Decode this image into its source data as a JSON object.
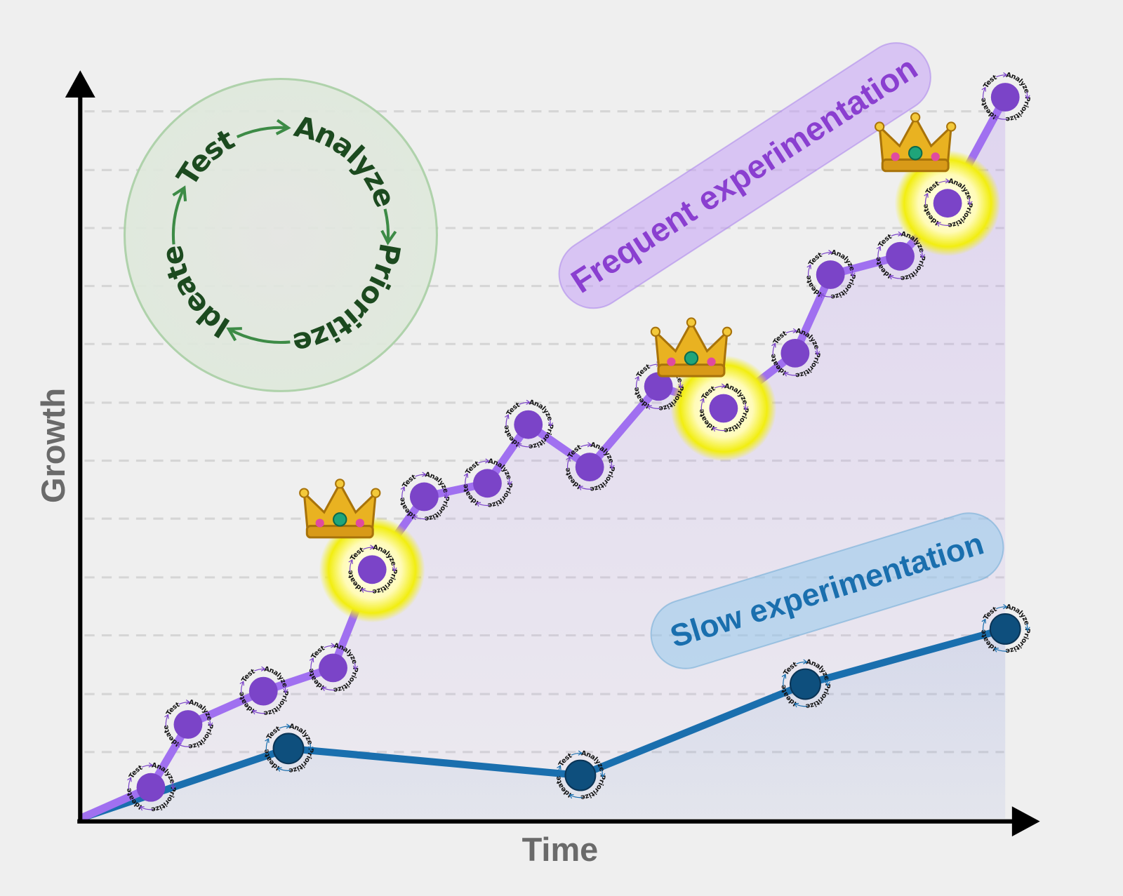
{
  "chart_data": {
    "type": "line",
    "xlabel": "Time",
    "ylabel": "Growth",
    "xlim": [
      0,
      103
    ],
    "ylim": [
      0,
      106
    ],
    "grid": true,
    "ygrid": [
      9.4,
      17.6,
      25.9,
      34.1,
      42.4,
      50.6,
      58.8,
      67.1,
      75.3,
      83.5,
      91.7,
      100
    ],
    "cycle_steps": [
      "Test",
      "Analyze",
      "Prioritize",
      "Ideate"
    ],
    "series": [
      {
        "name": "Slow experimentation",
        "color": "#1a6fae",
        "marker_color": "#0e4f7d",
        "x": [
          0,
          22.4,
          53.8,
          78.0,
          99.5
        ],
        "values": [
          0,
          9.9,
          6.1,
          19.0,
          26.8
        ],
        "highlight_points": []
      },
      {
        "name": "Frequent experimentation",
        "color": "#a070f0",
        "marker_color": "#7b44c8",
        "x": [
          0,
          7.6,
          11.6,
          19.7,
          27.2,
          31.4,
          37.0,
          43.8,
          48.2,
          54.8,
          62.2,
          69.2,
          76.9,
          80.7,
          88.2,
          93.3,
          99.5
        ],
        "values": [
          0,
          4.4,
          13.3,
          18.0,
          21.3,
          35.2,
          45.5,
          47.4,
          55.7,
          49.7,
          61.1,
          58.0,
          65.8,
          76.9,
          79.5,
          87.0,
          102.0
        ],
        "highlight_points": [
          5,
          11,
          15
        ]
      }
    ]
  }
}
